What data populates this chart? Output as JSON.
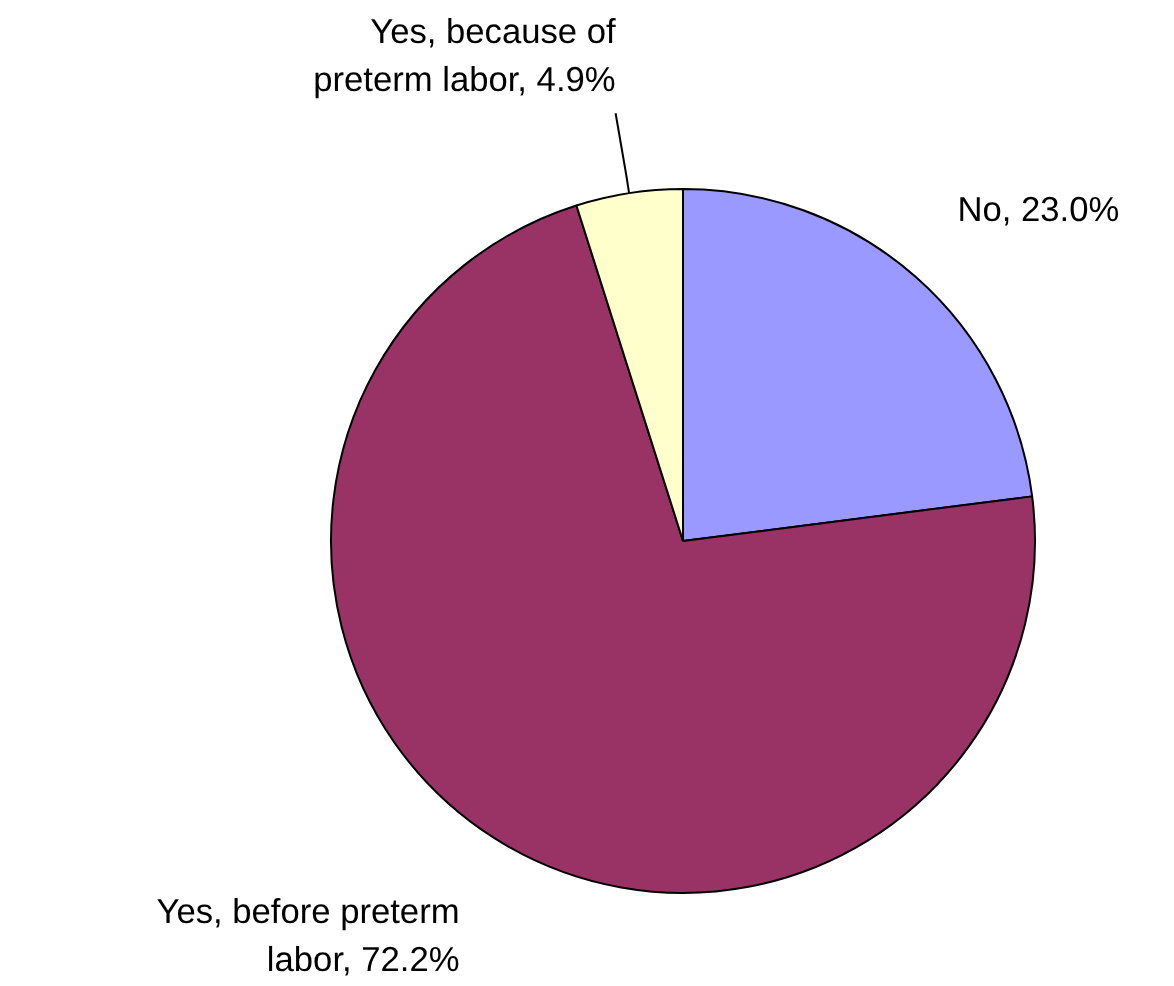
{
  "chart_data": {
    "type": "pie",
    "categories": [
      "No, 23.0%",
      "Yes, before preterm labor, 72.2%",
      "Yes, because of preterm labor, 4.9%"
    ],
    "values": [
      23.0,
      72.2,
      4.9
    ],
    "colors": [
      "#9999ff",
      "#993366",
      "#ffffcc"
    ]
  }
}
